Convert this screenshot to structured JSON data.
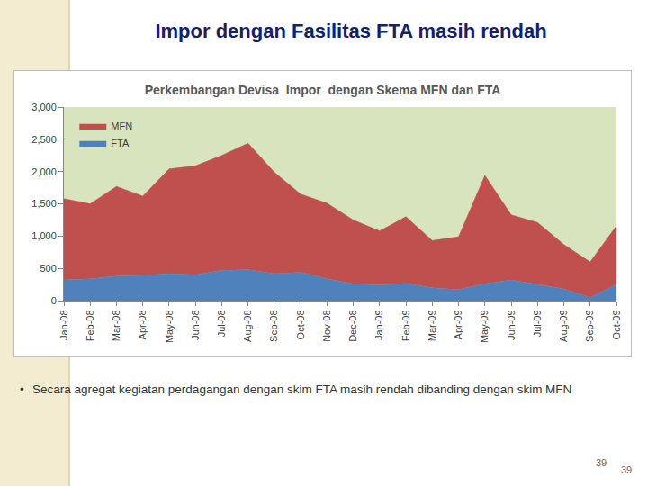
{
  "slide_title": "Impor dengan Fasilitas FTA masih rendah",
  "chart_data": {
    "type": "area",
    "title": "Perkembangan Devisa  Impor  dengan Skema MFN dan FTA",
    "categories": [
      "Jan-08",
      "Feb-08",
      "Mar-08",
      "Apr-08",
      "May-08",
      "Jun-08",
      "Jul-08",
      "Aug-08",
      "Sep-08",
      "Oct-08",
      "Nov-08",
      "Dec-08",
      "Jan-09",
      "Feb-09",
      "Mar-09",
      "Apr-09",
      "May-09",
      "Jun-09",
      "Jul-09",
      "Aug-09",
      "Sep-09",
      "Oct-09"
    ],
    "series": [
      {
        "name": "FTA",
        "color": "#4f81bd",
        "values": [
          320,
          340,
          380,
          390,
          420,
          400,
          470,
          480,
          420,
          440,
          340,
          260,
          240,
          270,
          200,
          170,
          260,
          320,
          250,
          180,
          50,
          250
        ]
      },
      {
        "name": "MFN",
        "color": "#c0504d",
        "values": [
          1260,
          1160,
          1390,
          1230,
          1620,
          1690,
          1780,
          1960,
          1570,
          1210,
          1170,
          990,
          840,
          1030,
          730,
          820,
          1680,
          1010,
          960,
          690,
          550,
          910
        ]
      }
    ],
    "stacked": true,
    "ylim": [
      0,
      3000
    ],
    "yticks": [
      0,
      500,
      {
        "value": 1000,
        "label": "1,000"
      },
      {
        "value": 1500,
        "label": "1,500"
      },
      {
        "value": 2000,
        "label": "2,000"
      },
      {
        "value": 2500,
        "label": "2,500"
      },
      {
        "value": 3000,
        "label": "3,000"
      }
    ],
    "grid": false,
    "legend": "top-left"
  },
  "bullet": "Secara agregat kegiatan perdagangan dengan skim FTA masih rendah dibanding dengan skim MFN",
  "page_numbers": [
    "39",
    "39"
  ]
}
